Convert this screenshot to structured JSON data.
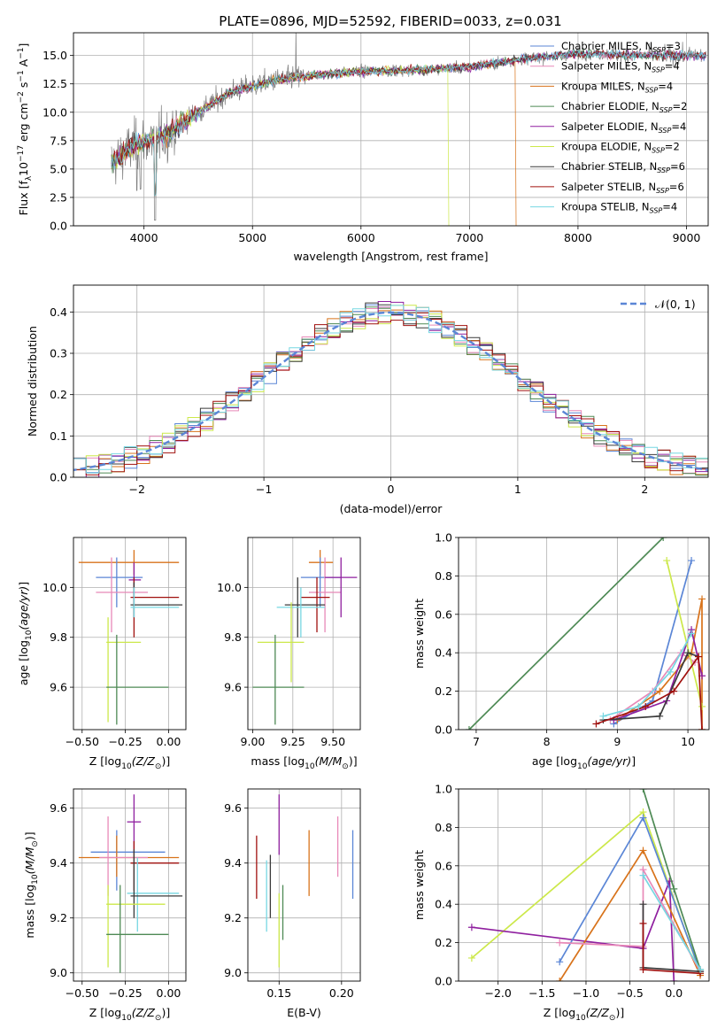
{
  "figure": {
    "title": "PLATE=0896, MJD=52592, FIBERID=0033, z=0.031"
  },
  "colors": {
    "Chabrier MILES": "#5b86d6",
    "Salpeter MILES": "#e889b8",
    "Kroupa MILES": "#d8731b",
    "Chabrier ELODIE": "#4e8a55",
    "Salpeter ELODIE": "#8f1f9f",
    "Kroupa ELODIE": "#cce84a",
    "Chabrier STELIB": "#3a3a3a",
    "Salpeter STELIB": "#a0100e",
    "Kroupa STELIB": "#77d7e2"
  },
  "chart_data": [
    {
      "id": "spectrum",
      "type": "line",
      "xlabel": "wavelength [Angstrom, rest frame]",
      "ylabel": "Flux [f",
      "xlim": [
        3350,
        9200
      ],
      "ylim": [
        0,
        17
      ],
      "xticks": [
        4000,
        5000,
        6000,
        7000,
        8000,
        9000
      ],
      "yticks": [
        0.0,
        2.5,
        5.0,
        7.5,
        10.0,
        12.5,
        15.0
      ],
      "ytick_labels": [
        "0.0",
        "2.5",
        "5.0",
        "7.5",
        "10.0",
        "12.5",
        "15.0"
      ],
      "legend": [
        {
          "name": "Chabrier MILES",
          "nssp": "3"
        },
        {
          "name": "Salpeter MILES",
          "nssp": "4"
        },
        {
          "name": "Kroupa MILES",
          "nssp": "4"
        },
        {
          "name": "Chabrier ELODIE",
          "nssp": "2"
        },
        {
          "name": "Salpeter ELODIE",
          "nssp": "4"
        },
        {
          "name": "Kroupa ELODIE",
          "nssp": "2"
        },
        {
          "name": "Chabrier STELIB",
          "nssp": "6"
        },
        {
          "name": "Salpeter STELIB",
          "nssp": "6"
        },
        {
          "name": "Kroupa STELIB",
          "nssp": "4"
        }
      ],
      "data_trend": [
        [
          3700,
          5.5
        ],
        [
          3900,
          7.0
        ],
        [
          4200,
          8.0
        ],
        [
          4500,
          10.0
        ],
        [
          4800,
          11.8
        ],
        [
          5200,
          12.8
        ],
        [
          5600,
          13.3
        ],
        [
          6000,
          13.6
        ],
        [
          6500,
          13.7
        ],
        [
          7000,
          14.0
        ],
        [
          7500,
          14.7
        ],
        [
          8000,
          15.2
        ],
        [
          8500,
          15.0
        ],
        [
          9000,
          15.0
        ]
      ],
      "model_cutoff": {
        "Kroupa ELODIE": 6800,
        "Kroupa MILES": 7420
      }
    },
    {
      "id": "residuals",
      "type": "line",
      "xlabel": "(data-model)/error",
      "ylabel": "Normed distribution",
      "xlim": [
        -2.5,
        2.5
      ],
      "ylim": [
        0,
        0.465
      ],
      "xticks": [
        -2,
        -1,
        0,
        1,
        2
      ],
      "xtick_labels": [
        "−2",
        "−1",
        "0",
        "1",
        "2"
      ],
      "yticks": [
        0.0,
        0.1,
        0.2,
        0.3,
        0.4
      ],
      "ytick_labels": [
        "0.0",
        "0.1",
        "0.2",
        "0.3",
        "0.4"
      ],
      "gaussian_label": "𝒩(0, 1)",
      "gaussian_color": "#5b86d6"
    },
    {
      "id": "age-vs-Z",
      "type": "scatter",
      "xlabel": "Z [log",
      "ylabel": "age  [log",
      "xlim": [
        -0.55,
        0.1
      ],
      "ylim": [
        9.43,
        10.2
      ],
      "xticks": [
        -0.5,
        -0.25,
        0.0
      ],
      "xtick_labels": [
        "−0.50",
        "−0.25",
        "0.00"
      ],
      "yticks": [
        9.6,
        9.8,
        10.0
      ],
      "ytick_labels": [
        "9.6",
        "9.8",
        "10.0"
      ],
      "points": [
        {
          "s": "Kroupa MILES",
          "x": -0.2,
          "y": 10.1,
          "xe": [
            -0.52,
            0.06
          ],
          "ye": [
            10.05,
            10.15
          ]
        },
        {
          "s": "Chabrier MILES",
          "x": -0.3,
          "y": 10.04,
          "xe": [
            -0.42,
            -0.15
          ],
          "ye": [
            9.92,
            10.12
          ]
        },
        {
          "s": "Salpeter MILES",
          "x": -0.33,
          "y": 9.98,
          "xe": [
            -0.42,
            -0.12
          ],
          "ye": [
            9.82,
            10.12
          ]
        },
        {
          "s": "Salpeter ELODIE",
          "x": -0.2,
          "y": 10.03,
          "xe": [
            -0.23,
            -0.16
          ],
          "ye": [
            9.88,
            10.1
          ]
        },
        {
          "s": "Salpeter STELIB",
          "x": -0.2,
          "y": 9.96,
          "xe": [
            -0.22,
            0.06
          ],
          "ye": [
            9.8,
            10.04
          ]
        },
        {
          "s": "Chabrier STELIB",
          "x": -0.2,
          "y": 9.93,
          "xe": [
            -0.22,
            0.08
          ],
          "ye": [
            9.88,
            10.02
          ]
        },
        {
          "s": "Kroupa STELIB",
          "x": -0.2,
          "y": 9.92,
          "xe": [
            -0.22,
            0.06
          ],
          "ye": [
            9.88,
            10.0
          ]
        },
        {
          "s": "Kroupa ELODIE",
          "x": -0.35,
          "y": 9.78,
          "xe": [
            -0.36,
            -0.16
          ],
          "ye": [
            9.46,
            9.88
          ]
        },
        {
          "s": "Chabrier ELODIE",
          "x": -0.3,
          "y": 9.6,
          "xe": [
            -0.36,
            0.0
          ],
          "ye": [
            9.45,
            9.81
          ]
        }
      ]
    },
    {
      "id": "age-vs-mass",
      "type": "scatter",
      "xlabel": "mass [log",
      "xlim": [
        8.97,
        9.67
      ],
      "ylim": [
        9.43,
        10.2
      ],
      "xticks": [
        9.0,
        9.25,
        9.5
      ],
      "xtick_labels": [
        "9.00",
        "9.25",
        "9.50"
      ],
      "yticks": [
        9.6,
        9.8,
        10.0
      ],
      "ytick_labels": [
        "9.6",
        "9.8",
        "10.0"
      ],
      "points": [
        {
          "s": "Kroupa MILES",
          "x": 9.42,
          "y": 10.1,
          "xe": [
            9.35,
            9.5
          ],
          "ye": [
            10.05,
            10.15
          ]
        },
        {
          "s": "Chabrier MILES",
          "x": 9.42,
          "y": 10.04,
          "xe": [
            9.3,
            9.55
          ],
          "ye": [
            9.92,
            10.12
          ]
        },
        {
          "s": "Salpeter MILES",
          "x": 9.45,
          "y": 9.98,
          "xe": [
            9.35,
            9.55
          ],
          "ye": [
            9.82,
            10.12
          ]
        },
        {
          "s": "Salpeter ELODIE",
          "x": 9.55,
          "y": 10.04,
          "xe": [
            9.45,
            9.65
          ],
          "ye": [
            9.88,
            10.12
          ]
        },
        {
          "s": "Salpeter STELIB",
          "x": 9.4,
          "y": 9.96,
          "xe": [
            9.3,
            9.48
          ],
          "ye": [
            9.82,
            10.04
          ]
        },
        {
          "s": "Chabrier STELIB",
          "x": 9.28,
          "y": 9.93,
          "xe": [
            9.2,
            9.45
          ],
          "ye": [
            9.8,
            10.04
          ]
        },
        {
          "s": "Kroupa STELIB",
          "x": 9.3,
          "y": 9.92,
          "xe": [
            9.15,
            9.45
          ],
          "ye": [
            9.8,
            10.0
          ]
        },
        {
          "s": "Kroupa ELODIE",
          "x": 9.24,
          "y": 9.78,
          "xe": [
            9.03,
            9.32
          ],
          "ye": [
            9.62,
            9.94
          ]
        },
        {
          "s": "Chabrier ELODIE",
          "x": 9.14,
          "y": 9.6,
          "xe": [
            9.0,
            9.32
          ],
          "ye": [
            9.45,
            9.81
          ]
        }
      ]
    },
    {
      "id": "mass-weight-vs-age",
      "type": "line",
      "xlabel": "age  [log",
      "ylabel": "mass weight",
      "xlim": [
        6.75,
        10.3
      ],
      "ylim": [
        0,
        1.0
      ],
      "xticks": [
        7,
        8,
        9,
        10
      ],
      "xtick_labels": [
        "7",
        "8",
        "9",
        "10"
      ],
      "yticks": [
        0.0,
        0.2,
        0.4,
        0.6,
        0.8,
        1.0
      ],
      "ytick_labels": [
        "0.0",
        "0.2",
        "0.4",
        "0.6",
        "0.8",
        "1.0"
      ],
      "series": [
        {
          "s": "Chabrier ELODIE",
          "pts": [
            [
              6.9,
              0.0
            ],
            [
              9.65,
              1.0
            ]
          ]
        },
        {
          "s": "Chabrier MILES",
          "pts": [
            [
              8.95,
              0.03
            ],
            [
              9.5,
              0.15
            ],
            [
              10.05,
              0.88
            ]
          ]
        },
        {
          "s": "Salpeter MILES",
          "pts": [
            [
              8.9,
              0.05
            ],
            [
              9.5,
              0.2
            ],
            [
              9.9,
              0.4
            ],
            [
              10.1,
              0.35
            ]
          ]
        },
        {
          "s": "Kroupa MILES",
          "pts": [
            [
              9.0,
              0.05
            ],
            [
              9.6,
              0.2
            ],
            [
              10.05,
              0.4
            ],
            [
              10.2,
              0.68
            ],
            [
              10.2,
              0.0
            ]
          ]
        },
        {
          "s": "Salpeter ELODIE",
          "pts": [
            [
              8.95,
              0.05
            ],
            [
              9.7,
              0.15
            ],
            [
              10.05,
              0.52
            ],
            [
              10.2,
              0.28
            ]
          ]
        },
        {
          "s": "Kroupa ELODIE",
          "pts": [
            [
              9.7,
              0.88
            ],
            [
              10.2,
              0.12
            ]
          ]
        },
        {
          "s": "Chabrier STELIB",
          "pts": [
            [
              8.8,
              0.05
            ],
            [
              9.6,
              0.07
            ],
            [
              10.0,
              0.4
            ],
            [
              10.15,
              0.38
            ]
          ]
        },
        {
          "s": "Salpeter STELIB",
          "pts": [
            [
              8.7,
              0.03
            ],
            [
              9.4,
              0.12
            ],
            [
              9.8,
              0.2
            ],
            [
              10.15,
              0.38
            ],
            [
              10.2,
              0.0
            ]
          ]
        },
        {
          "s": "Kroupa STELIB",
          "pts": [
            [
              8.8,
              0.07
            ],
            [
              9.3,
              0.12
            ],
            [
              9.75,
              0.3
            ],
            [
              10.05,
              0.5
            ]
          ]
        }
      ]
    },
    {
      "id": "mass-vs-Z",
      "type": "scatter",
      "xlabel": "Z [log",
      "ylabel": "mass [log",
      "xlim": [
        -0.55,
        0.1
      ],
      "ylim": [
        8.97,
        9.67
      ],
      "xticks": [
        -0.5,
        -0.25,
        0.0
      ],
      "xtick_labels": [
        "−0.50",
        "−0.25",
        "0.00"
      ],
      "yticks": [
        9.0,
        9.2,
        9.4,
        9.6
      ],
      "ytick_labels": [
        "9.0",
        "9.2",
        "9.4",
        "9.6"
      ],
      "points": [
        {
          "s": "Chabrier MILES",
          "x": -0.3,
          "y": 9.44,
          "xe": [
            -0.45,
            -0.02
          ],
          "ye": [
            9.3,
            9.52
          ]
        },
        {
          "s": "Kroupa MILES",
          "x": -0.3,
          "y": 9.42,
          "xe": [
            -0.52,
            0.06
          ],
          "ye": [
            9.35,
            9.5
          ]
        },
        {
          "s": "Salpeter MILES",
          "x": -0.35,
          "y": 9.42,
          "xe": [
            -0.4,
            -0.12
          ],
          "ye": [
            9.28,
            9.57
          ]
        },
        {
          "s": "Salpeter ELODIE",
          "x": -0.2,
          "y": 9.55,
          "xe": [
            -0.24,
            -0.16
          ],
          "ye": [
            9.45,
            9.65
          ]
        },
        {
          "s": "Salpeter STELIB",
          "x": -0.2,
          "y": 9.4,
          "xe": [
            -0.22,
            0.06
          ],
          "ye": [
            9.3,
            9.48
          ]
        },
        {
          "s": "Kroupa STELIB",
          "x": -0.18,
          "y": 9.29,
          "xe": [
            -0.24,
            0.06
          ],
          "ye": [
            9.15,
            9.42
          ]
        },
        {
          "s": "Chabrier STELIB",
          "x": -0.2,
          "y": 9.28,
          "xe": [
            -0.22,
            0.08
          ],
          "ye": [
            9.2,
            9.45
          ]
        },
        {
          "s": "Kroupa ELODIE",
          "x": -0.35,
          "y": 9.25,
          "xe": [
            -0.36,
            -0.02
          ],
          "ye": [
            9.02,
            9.32
          ]
        },
        {
          "s": "Chabrier ELODIE",
          "x": -0.28,
          "y": 9.14,
          "xe": [
            -0.36,
            0.0
          ],
          "ye": [
            9.0,
            9.32
          ]
        }
      ]
    },
    {
      "id": "mass-vs-EBV",
      "type": "scatter",
      "xlabel": "E(B-V)",
      "xlim": [
        0.125,
        0.215
      ],
      "ylim": [
        8.97,
        9.67
      ],
      "xticks": [
        0.15,
        0.2
      ],
      "xtick_labels": [
        "0.15",
        "0.20"
      ],
      "yticks": [
        9.0,
        9.2,
        9.4,
        9.6
      ],
      "ytick_labels": [
        "9.0",
        "9.2",
        "9.4",
        "9.6"
      ],
      "points": [
        {
          "s": "Salpeter STELIB",
          "x": 0.132,
          "ye": [
            9.27,
            9.5
          ]
        },
        {
          "s": "Kroupa STELIB",
          "x": 0.14,
          "ye": [
            9.15,
            9.41
          ]
        },
        {
          "s": "Chabrier STELIB",
          "x": 0.143,
          "ye": [
            9.2,
            9.43
          ]
        },
        {
          "s": "Salpeter ELODIE",
          "x": 0.15,
          "ye": [
            9.43,
            9.65
          ]
        },
        {
          "s": "Kroupa ELODIE",
          "x": 0.15,
          "ye": [
            9.02,
            9.29
          ]
        },
        {
          "s": "Chabrier ELODIE",
          "x": 0.153,
          "ye": [
            9.12,
            9.32
          ]
        },
        {
          "s": "Kroupa MILES",
          "x": 0.174,
          "ye": [
            9.28,
            9.52
          ]
        },
        {
          "s": "Salpeter MILES",
          "x": 0.197,
          "ye": [
            9.35,
            9.57
          ]
        },
        {
          "s": "Chabrier MILES",
          "x": 0.209,
          "ye": [
            9.27,
            9.52
          ]
        }
      ]
    },
    {
      "id": "mass-weight-vs-Z",
      "type": "line",
      "xlabel": "Z [log",
      "ylabel": "mass weight",
      "xlim": [
        -2.45,
        0.4
      ],
      "ylim": [
        0,
        1.0
      ],
      "xticks": [
        -2.0,
        -1.5,
        -1.0,
        -0.5,
        0.0
      ],
      "xtick_labels": [
        "−2.0",
        "−1.5",
        "−1.0",
        "−0.5",
        "0.0"
      ],
      "yticks": [
        0.0,
        0.2,
        0.4,
        0.6,
        0.8,
        1.0
      ],
      "ytick_labels": [
        "0.0",
        "0.2",
        "0.4",
        "0.6",
        "0.8",
        "1.0"
      ],
      "series": [
        {
          "s": "Kroupa ELODIE",
          "pts": [
            [
              -2.3,
              0.12
            ],
            [
              -0.35,
              0.88
            ],
            [
              0.3,
              0.04
            ]
          ]
        },
        {
          "s": "Salpeter ELODIE",
          "pts": [
            [
              -2.3,
              0.28
            ],
            [
              -0.35,
              0.17
            ],
            [
              -0.05,
              0.52
            ],
            [
              0.0,
              0.0
            ]
          ]
        },
        {
          "s": "Chabrier MILES",
          "pts": [
            [
              -1.3,
              0.1
            ],
            [
              -0.35,
              0.85
            ],
            [
              0.3,
              0.05
            ]
          ]
        },
        {
          "s": "Kroupa MILES",
          "pts": [
            [
              -1.3,
              0.0
            ],
            [
              -0.35,
              0.68
            ],
            [
              0.3,
              0.03
            ]
          ]
        },
        {
          "s": "Salpeter MILES",
          "pts": [
            [
              -1.3,
              0.2
            ],
            [
              -0.35,
              0.18
            ],
            [
              -0.35,
              0.58
            ],
            [
              0.3,
              0.05
            ]
          ]
        },
        {
          "s": "Chabrier ELODIE",
          "pts": [
            [
              -0.35,
              1.0
            ],
            [
              0.0,
              0.48
            ],
            [
              0.3,
              0.06
            ]
          ]
        },
        {
          "s": "Chabrier STELIB",
          "pts": [
            [
              -0.35,
              0.4
            ],
            [
              -0.35,
              0.07
            ],
            [
              0.3,
              0.05
            ]
          ]
        },
        {
          "s": "Salpeter STELIB",
          "pts": [
            [
              -0.35,
              0.3
            ],
            [
              -0.35,
              0.06
            ],
            [
              0.3,
              0.04
            ]
          ]
        },
        {
          "s": "Kroupa STELIB",
          "pts": [
            [
              -0.35,
              0.55
            ],
            [
              0.3,
              0.06
            ]
          ]
        }
      ]
    }
  ]
}
